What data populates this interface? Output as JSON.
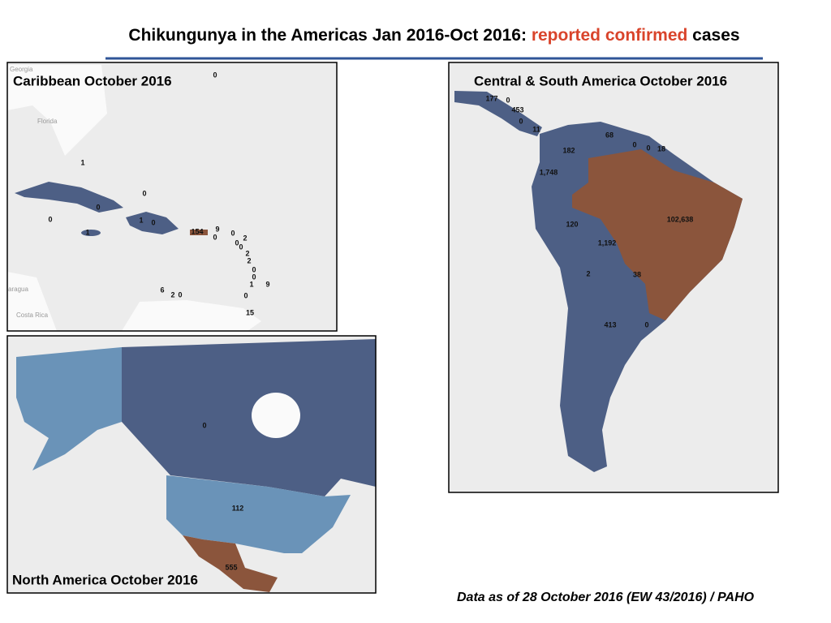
{
  "header": {
    "title_parts": [
      "Chikungunya in the Americas Jan 2016-Oct 2016: ",
      "reported confirmed",
      " cases"
    ]
  },
  "panels": {
    "caribbean": {
      "title": "Caribbean October 2016",
      "place_names": [
        "Georgia",
        "Florida",
        "aragua",
        "Costa Rica"
      ],
      "labels": [
        "0",
        "1",
        "0",
        "0",
        "0",
        "1",
        "0",
        "1",
        "154",
        "9",
        "0",
        "0",
        "2",
        "0",
        "0",
        "2",
        "2",
        "0",
        "0",
        "1",
        "9",
        "6",
        "2",
        "0",
        "0",
        "15"
      ]
    },
    "central_south": {
      "title": "Central & South America October 2016",
      "labels": [
        "177",
        "0",
        "453",
        "0",
        "11",
        "68",
        "0",
        "0",
        "18",
        "182",
        "1,748",
        "102,638",
        "120",
        "1,192",
        "2",
        "38",
        "413",
        "0"
      ]
    },
    "north_america": {
      "title": "North America October  2016",
      "labels": [
        "0",
        "112",
        "555"
      ]
    }
  },
  "footer": "Data as of 28 October 2016 (EW 43/2016) / PAHO"
}
